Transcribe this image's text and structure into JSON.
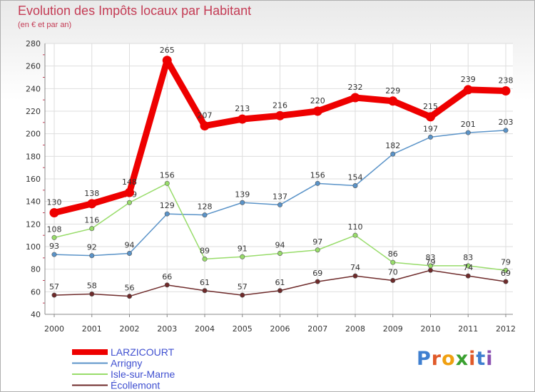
{
  "title": "Evolution des Impôts locaux par Habitant",
  "subtitle": "(en € et par an)",
  "logo": {
    "text": "Proxiti",
    "letters": [
      "P",
      "r",
      "o",
      "x",
      "i",
      "t",
      "i"
    ],
    "colors": [
      "#3f7fd0",
      "#e05a2a",
      "#f0a010",
      "#3aa030",
      "#e05a2a",
      "#3f7fd0",
      "#8a4fb0"
    ]
  },
  "chart_data": {
    "type": "line",
    "title": "Evolution des Impôts locaux par Habitant",
    "ylabel": "(en € et par an)",
    "xlabel": "",
    "x": [
      "2000",
      "2001",
      "2002",
      "2003",
      "2004",
      "2005",
      "2006",
      "2007",
      "2008",
      "2009",
      "2010",
      "2011",
      "2012"
    ],
    "ylim": [
      40,
      280
    ],
    "yticks": [
      40,
      60,
      80,
      100,
      120,
      140,
      160,
      180,
      200,
      220,
      240,
      260,
      280
    ],
    "grid": true,
    "legend_position": "bottom-left",
    "series": [
      {
        "name": "LARZICOURT",
        "color": "#ee0000",
        "values": [
          130,
          138,
          148,
          265,
          207,
          213,
          216,
          220,
          232,
          229,
          215,
          239,
          238
        ]
      },
      {
        "name": "Arrigny",
        "color": "#5a93c8",
        "values": [
          93,
          92,
          94,
          129,
          128,
          139,
          137,
          156,
          154,
          182,
          197,
          201,
          203
        ]
      },
      {
        "name": "Isle-sur-Marne",
        "color": "#98dc6a",
        "values": [
          108,
          116,
          139,
          156,
          89,
          91,
          94,
          97,
          110,
          86,
          83,
          83,
          79
        ]
      },
      {
        "name": "Écollemont",
        "color": "#6e2a2a",
        "values": [
          57,
          58,
          56,
          66,
          61,
          57,
          61,
          69,
          74,
          70,
          79,
          74,
          69
        ]
      }
    ]
  }
}
